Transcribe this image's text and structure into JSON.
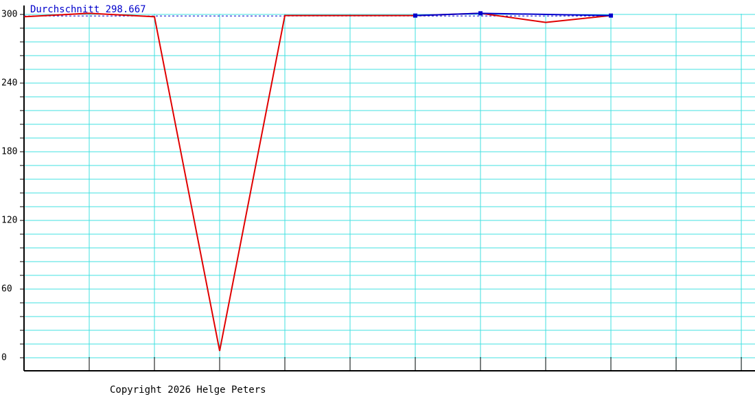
{
  "chart_data": {
    "type": "line",
    "average": {
      "value": 298.667,
      "label": "Durchschnitt 298.667"
    },
    "series": [
      {
        "color": "#e00000",
        "x": [
          0,
          1,
          2,
          3,
          4,
          5,
          6,
          7,
          8,
          9
        ],
        "values": [
          298,
          301,
          298,
          6,
          299,
          299,
          299,
          301,
          293,
          299
        ]
      },
      {
        "color": "#0000cc",
        "x": [
          6,
          7,
          9
        ],
        "values": [
          299,
          301,
          299
        ],
        "markers": true
      }
    ],
    "xlim": [
      0,
      11.21
    ],
    "xgrid": [
      1,
      2,
      3,
      4,
      5,
      6,
      7,
      8,
      9,
      10,
      11
    ],
    "ylim": [
      -11.4,
      307.8
    ],
    "yticks": [
      0,
      60,
      120,
      180,
      240,
      300
    ],
    "ygrid": [
      0,
      12,
      24,
      36,
      48,
      60,
      72,
      84,
      96,
      108,
      120,
      132,
      144,
      156,
      168,
      180,
      192,
      204,
      216,
      228,
      240,
      252,
      264,
      276,
      288,
      300
    ],
    "grid_color": "#40e0e0"
  },
  "footer": "Copyright 2026 Helge Peters"
}
